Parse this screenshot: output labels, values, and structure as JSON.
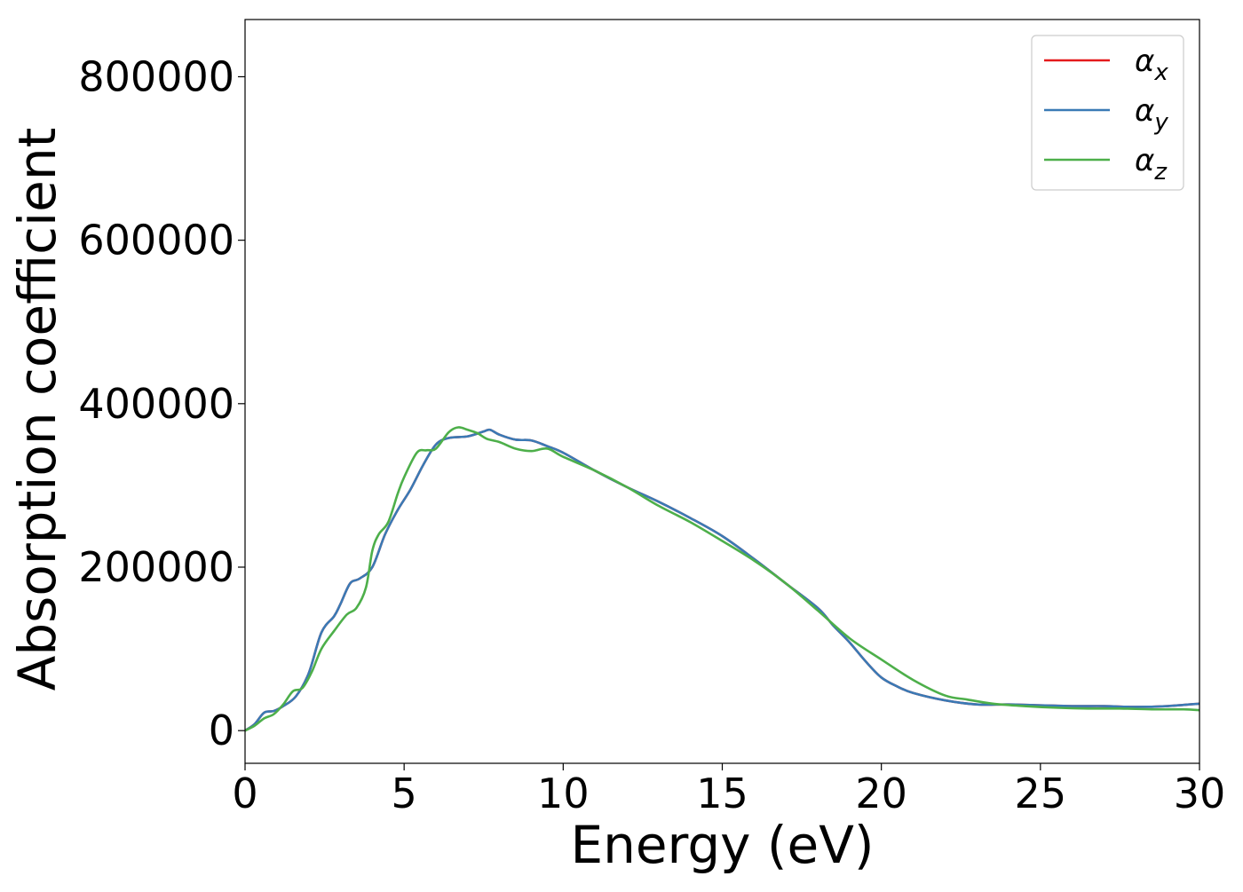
{
  "chart_data": {
    "type": "line",
    "title": "",
    "xlabel": "Energy (eV)",
    "ylabel": "Absorption coefficient",
    "xlim": [
      0,
      30
    ],
    "ylim": [
      -40000,
      870000
    ],
    "xticks": [
      0,
      5,
      10,
      15,
      20,
      25,
      30
    ],
    "xtick_labels": [
      "0",
      "5",
      "10",
      "15",
      "20",
      "25",
      "30"
    ],
    "yticks": [
      0,
      200000,
      400000,
      600000,
      800000
    ],
    "ytick_labels": [
      "0",
      "200000",
      "400000",
      "600000",
      "800000"
    ],
    "grid": false,
    "legend_position": "top-right",
    "series": [
      {
        "name": "α",
        "subscript": "x",
        "color": "#e41a1c",
        "x": [
          0,
          0.3,
          0.6,
          0.9,
          1.2,
          1.6,
          2.0,
          2.4,
          2.8,
          3.0,
          3.3,
          3.6,
          4.0,
          4.4,
          4.8,
          5.2,
          5.6,
          6.0,
          6.4,
          7.0,
          7.5,
          7.7,
          8.0,
          8.5,
          9.0,
          9.5,
          10.0,
          11.0,
          12.0,
          13.0,
          14.0,
          15.0,
          16.0,
          17.0,
          18.0,
          18.5,
          19.0,
          19.5,
          20.0,
          20.5,
          21.0,
          22.0,
          23.0,
          24.0,
          25.0,
          26.0,
          27.0,
          28.0,
          29.0,
          30.0
        ],
        "y": [
          0,
          8000,
          22000,
          24000,
          30000,
          42000,
          70000,
          120000,
          140000,
          155000,
          180000,
          186000,
          200000,
          240000,
          270000,
          295000,
          325000,
          350000,
          358000,
          360000,
          366000,
          368000,
          362000,
          356000,
          355000,
          348000,
          340000,
          318000,
          298000,
          280000,
          260000,
          238000,
          210000,
          180000,
          150000,
          128000,
          108000,
          85000,
          65000,
          54000,
          46000,
          37000,
          32000,
          32000,
          31000,
          30000,
          30000,
          29000,
          30000,
          33000
        ]
      },
      {
        "name": "α",
        "subscript": "y",
        "color": "#3a7ab5",
        "x": [
          0,
          0.3,
          0.6,
          0.9,
          1.2,
          1.6,
          2.0,
          2.4,
          2.8,
          3.0,
          3.3,
          3.6,
          4.0,
          4.4,
          4.8,
          5.2,
          5.6,
          6.0,
          6.4,
          7.0,
          7.5,
          7.7,
          8.0,
          8.5,
          9.0,
          9.5,
          10.0,
          11.0,
          12.0,
          13.0,
          14.0,
          15.0,
          16.0,
          17.0,
          18.0,
          18.5,
          19.0,
          19.5,
          20.0,
          20.5,
          21.0,
          22.0,
          23.0,
          24.0,
          25.0,
          26.0,
          27.0,
          28.0,
          29.0,
          30.0
        ],
        "y": [
          0,
          8000,
          22000,
          24000,
          30000,
          42000,
          70000,
          120000,
          140000,
          155000,
          180000,
          186000,
          200000,
          240000,
          270000,
          295000,
          325000,
          350000,
          358000,
          360000,
          366000,
          368000,
          362000,
          356000,
          355000,
          348000,
          340000,
          318000,
          298000,
          280000,
          260000,
          238000,
          210000,
          180000,
          150000,
          128000,
          108000,
          85000,
          65000,
          54000,
          46000,
          37000,
          32000,
          32000,
          31000,
          30000,
          30000,
          29000,
          30000,
          33000
        ]
      },
      {
        "name": "α",
        "subscript": "z",
        "color": "#4daf4a",
        "x": [
          0,
          0.3,
          0.6,
          0.9,
          1.2,
          1.5,
          1.8,
          2.1,
          2.4,
          2.8,
          3.2,
          3.5,
          3.8,
          4.0,
          4.2,
          4.5,
          4.8,
          5.0,
          5.4,
          5.7,
          6.0,
          6.4,
          6.7,
          7.0,
          7.3,
          7.6,
          8.0,
          8.5,
          9.0,
          9.5,
          10.0,
          11.0,
          12.0,
          13.0,
          14.0,
          15.0,
          16.0,
          17.0,
          18.0,
          19.0,
          20.0,
          21.0,
          22.0,
          22.7,
          23.5,
          24.5,
          25.5,
          26.5,
          27.5,
          28.5,
          29.5,
          30.0
        ],
        "y": [
          0,
          6000,
          15000,
          20000,
          32000,
          48000,
          52000,
          72000,
          100000,
          122000,
          142000,
          150000,
          175000,
          220000,
          240000,
          255000,
          290000,
          310000,
          340000,
          343000,
          345000,
          365000,
          371000,
          368000,
          364000,
          357000,
          353000,
          345000,
          342000,
          345000,
          335000,
          318000,
          298000,
          275000,
          255000,
          232000,
          208000,
          180000,
          147000,
          113000,
          87000,
          62000,
          43000,
          38000,
          33000,
          30000,
          28000,
          27000,
          27000,
          26000,
          26000,
          25000
        ]
      }
    ]
  }
}
